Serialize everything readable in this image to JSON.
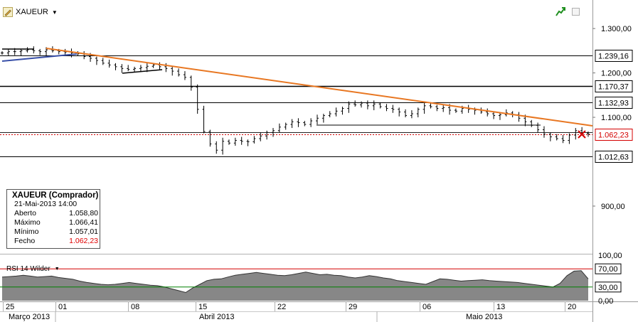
{
  "header": {
    "symbol": "XAUEUR",
    "dropdown_icon": "chevron-down-icon",
    "pencil_icon": "pencil-icon",
    "trend_icon": "trend-up-icon",
    "window_icon": "window-icon"
  },
  "info_box": {
    "title": "XAUEUR (Comprador)",
    "datetime": "21-Mai-2013 14:00",
    "rows": [
      {
        "label": "Aberto",
        "value": "1.058,80"
      },
      {
        "label": "Máximo",
        "value": "1.066,41"
      },
      {
        "label": "Mínimo",
        "value": "1.057,01"
      },
      {
        "label": "Fecho",
        "value": "1.062,23"
      }
    ]
  },
  "rsi": {
    "label": "RSI 14 Wilder"
  },
  "colors": {
    "trendline": "#e87722",
    "support_line": "#3950a8",
    "rsi_upper": "#d40000",
    "rsi_lower": "#008000",
    "rsi_fill": "#7a7a7a",
    "price_marker": "#d40000"
  },
  "chart_data": [
    {
      "type": "candlestick",
      "title": "XAUEUR",
      "y_axis_ticks": [
        "1.300,00",
        "1.200,00",
        "1.100,00",
        "900,00"
      ],
      "y_tick_values": [
        1300,
        1200,
        1100,
        900
      ],
      "ylim": [
        755,
        1350
      ],
      "x_tick_labels": [
        "25",
        "01",
        "08",
        "15",
        "22",
        "29",
        "06",
        "13",
        "20"
      ],
      "x_month_labels": [
        "Março 2013",
        "Abril 2013",
        "Maio 2013"
      ],
      "horizontal_levels": [
        {
          "value": 1239.16,
          "label": "1.239,16"
        },
        {
          "value": 1170.37,
          "label": "1.170,37"
        },
        {
          "value": 1132.93,
          "label": "1.132,93"
        },
        {
          "value": 1062.23,
          "label": "1.062,23",
          "current": true
        },
        {
          "value": 1012.63,
          "label": "1.012,63"
        }
      ],
      "close_series": [
        1245,
        1248,
        1248,
        1250,
        1252,
        1250,
        1248,
        1252,
        1250,
        1248,
        1247,
        1245,
        1243,
        1237,
        1233,
        1228,
        1222,
        1218,
        1214,
        1210,
        1208,
        1210,
        1212,
        1215,
        1218,
        1214,
        1210,
        1204,
        1196,
        1190,
        1168,
        1118,
        1068,
        1040,
        1026,
        1046,
        1042,
        1048,
        1046,
        1045,
        1052,
        1058,
        1066,
        1070,
        1078,
        1084,
        1090,
        1088,
        1084,
        1092,
        1098,
        1104,
        1108,
        1114,
        1120,
        1130,
        1128,
        1132,
        1126,
        1130,
        1124,
        1120,
        1118,
        1112,
        1104,
        1108,
        1118,
        1126,
        1124,
        1120,
        1122,
        1116,
        1114,
        1120,
        1118,
        1116,
        1112,
        1108,
        1104,
        1106,
        1110,
        1106,
        1098,
        1090,
        1082,
        1072,
        1062,
        1056,
        1052,
        1048,
        1060,
        1070,
        1064,
        1062
      ]
    },
    {
      "type": "line",
      "title": "RSI 14 Wilder",
      "y_axis_ticks": [
        "100,00",
        "70,00",
        "30,00",
        "0,00"
      ],
      "y_tick_values": [
        100,
        70,
        30,
        0
      ],
      "ylim": [
        0,
        100
      ],
      "reference_lines": [
        70,
        30
      ],
      "values": [
        52,
        53,
        54,
        56,
        54,
        52,
        53,
        54,
        51,
        49,
        47,
        43,
        40,
        38,
        36,
        35,
        36,
        38,
        40,
        38,
        36,
        34,
        33,
        30,
        26,
        22,
        18,
        28,
        36,
        44,
        47,
        48,
        52,
        56,
        58,
        60,
        62,
        60,
        58,
        56,
        55,
        57,
        60,
        63,
        60,
        57,
        58,
        56,
        55,
        52,
        50,
        52,
        55,
        53,
        50,
        48,
        44,
        42,
        40,
        38,
        36,
        42,
        48,
        47,
        45,
        43,
        44,
        45,
        46,
        44,
        43,
        42,
        41,
        40,
        38,
        36,
        34,
        32,
        30,
        38,
        55,
        65,
        66,
        48
      ]
    }
  ]
}
